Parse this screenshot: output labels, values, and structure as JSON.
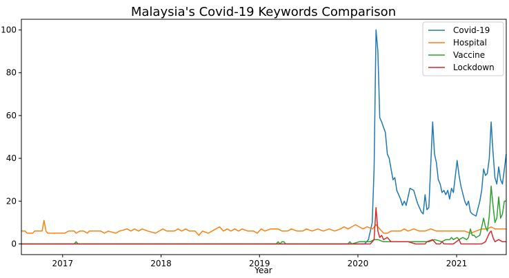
{
  "chart_data": {
    "type": "line",
    "title": "Malaysia's Covid-19 Keywords Comparison",
    "xlabel": "Year",
    "ylabel": "",
    "x_range": [
      "2016-08-01",
      "2021-07-04"
    ],
    "ylim": [
      -5,
      105
    ],
    "x_ticks": [
      "2017",
      "2018",
      "2019",
      "2020",
      "2021"
    ],
    "y_ticks": [
      0,
      20,
      40,
      60,
      80,
      100
    ],
    "legend_position": "top-right",
    "grid": false,
    "series": [
      {
        "name": "Covid-19",
        "color": "#1f77b4",
        "points": [
          [
            "2016-08-01",
            0
          ],
          [
            "2019-12-15",
            0
          ],
          [
            "2020-01-26",
            0
          ],
          [
            "2020-02-09",
            2
          ],
          [
            "2020-02-23",
            10
          ],
          [
            "2020-03-01",
            35
          ],
          [
            "2020-03-08",
            100
          ],
          [
            "2020-03-15",
            90
          ],
          [
            "2020-03-22",
            59
          ],
          [
            "2020-03-29",
            57
          ],
          [
            "2020-04-12",
            52
          ],
          [
            "2020-04-19",
            42
          ],
          [
            "2020-04-26",
            40
          ],
          [
            "2020-05-03",
            35
          ],
          [
            "2020-05-10",
            30
          ],
          [
            "2020-05-17",
            31
          ],
          [
            "2020-05-24",
            25
          ],
          [
            "2020-06-07",
            21
          ],
          [
            "2020-06-14",
            18
          ],
          [
            "2020-06-21",
            20
          ],
          [
            "2020-06-28",
            18
          ],
          [
            "2020-07-05",
            22
          ],
          [
            "2020-07-12",
            26
          ],
          [
            "2020-07-26",
            25
          ],
          [
            "2020-08-02",
            22
          ],
          [
            "2020-08-09",
            19
          ],
          [
            "2020-08-23",
            15
          ],
          [
            "2020-08-30",
            14
          ],
          [
            "2020-09-06",
            23
          ],
          [
            "2020-09-13",
            16
          ],
          [
            "2020-09-20",
            17
          ],
          [
            "2020-10-04",
            57
          ],
          [
            "2020-10-11",
            42
          ],
          [
            "2020-10-18",
            38
          ],
          [
            "2020-10-25",
            30
          ],
          [
            "2020-11-01",
            28
          ],
          [
            "2020-11-08",
            24
          ],
          [
            "2020-11-15",
            25
          ],
          [
            "2020-11-22",
            23
          ],
          [
            "2020-11-29",
            25
          ],
          [
            "2020-12-06",
            21
          ],
          [
            "2020-12-13",
            26
          ],
          [
            "2020-12-20",
            24
          ],
          [
            "2021-01-03",
            39
          ],
          [
            "2021-01-10",
            32
          ],
          [
            "2021-01-17",
            27
          ],
          [
            "2021-01-31",
            20
          ],
          [
            "2021-02-07",
            18
          ],
          [
            "2021-02-14",
            20
          ],
          [
            "2021-02-21",
            15
          ],
          [
            "2021-02-28",
            14
          ],
          [
            "2021-03-14",
            13
          ],
          [
            "2021-03-28",
            20
          ],
          [
            "2021-04-04",
            25
          ],
          [
            "2021-04-11",
            35
          ],
          [
            "2021-04-18",
            32
          ],
          [
            "2021-04-25",
            33
          ],
          [
            "2021-05-02",
            40
          ],
          [
            "2021-05-09",
            57
          ],
          [
            "2021-05-16",
            43
          ],
          [
            "2021-05-23",
            31
          ],
          [
            "2021-05-30",
            28
          ],
          [
            "2021-06-06",
            36
          ],
          [
            "2021-06-13",
            30
          ],
          [
            "2021-06-20",
            28
          ],
          [
            "2021-06-27",
            35
          ],
          [
            "2021-07-04",
            42
          ]
        ]
      },
      {
        "name": "Hospital",
        "color": "#ff7f0e",
        "points": [
          [
            "2016-08-01",
            6
          ],
          [
            "2016-08-15",
            6
          ],
          [
            "2016-08-22",
            5
          ],
          [
            "2016-09-12",
            5
          ],
          [
            "2016-09-19",
            6
          ],
          [
            "2016-10-17",
            6
          ],
          [
            "2016-10-24",
            11
          ],
          [
            "2016-10-31",
            6
          ],
          [
            "2016-11-07",
            5
          ],
          [
            "2017-01-09",
            5
          ],
          [
            "2017-01-23",
            6
          ],
          [
            "2017-02-13",
            6
          ],
          [
            "2017-02-20",
            5
          ],
          [
            "2017-03-06",
            6
          ],
          [
            "2017-03-20",
            6
          ],
          [
            "2017-04-03",
            5
          ],
          [
            "2017-04-10",
            6
          ],
          [
            "2017-05-22",
            6
          ],
          [
            "2017-06-05",
            5
          ],
          [
            "2017-06-19",
            6
          ],
          [
            "2017-07-17",
            5
          ],
          [
            "2017-07-31",
            6
          ],
          [
            "2017-08-28",
            7
          ],
          [
            "2017-09-11",
            6
          ],
          [
            "2017-09-25",
            7
          ],
          [
            "2017-10-09",
            6
          ],
          [
            "2017-10-23",
            7
          ],
          [
            "2017-11-13",
            6
          ],
          [
            "2017-12-11",
            5
          ],
          [
            "2017-12-25",
            6
          ],
          [
            "2018-01-08",
            7
          ],
          [
            "2018-01-22",
            6
          ],
          [
            "2018-02-19",
            6
          ],
          [
            "2018-03-05",
            7
          ],
          [
            "2018-03-19",
            6
          ],
          [
            "2018-04-02",
            7
          ],
          [
            "2018-04-16",
            6
          ],
          [
            "2018-05-07",
            6
          ],
          [
            "2018-05-21",
            4
          ],
          [
            "2018-06-04",
            6
          ],
          [
            "2018-06-25",
            5
          ],
          [
            "2018-07-09",
            6
          ],
          [
            "2018-07-23",
            7
          ],
          [
            "2018-08-06",
            8
          ],
          [
            "2018-08-20",
            6
          ],
          [
            "2018-09-03",
            7
          ],
          [
            "2018-09-17",
            6
          ],
          [
            "2018-10-01",
            7
          ],
          [
            "2018-10-15",
            6
          ],
          [
            "2018-10-29",
            7
          ],
          [
            "2018-11-19",
            6
          ],
          [
            "2018-12-10",
            6
          ],
          [
            "2018-12-24",
            5
          ],
          [
            "2019-01-07",
            7
          ],
          [
            "2019-01-21",
            6
          ],
          [
            "2019-02-11",
            7
          ],
          [
            "2019-03-11",
            7
          ],
          [
            "2019-03-25",
            6
          ],
          [
            "2019-04-15",
            6
          ],
          [
            "2019-04-29",
            7
          ],
          [
            "2019-05-20",
            6
          ],
          [
            "2019-06-10",
            6
          ],
          [
            "2019-06-24",
            7
          ],
          [
            "2019-07-15",
            6
          ],
          [
            "2019-08-05",
            7
          ],
          [
            "2019-08-26",
            6
          ],
          [
            "2019-09-16",
            7
          ],
          [
            "2019-10-07",
            6
          ],
          [
            "2019-10-28",
            7
          ],
          [
            "2019-11-11",
            8
          ],
          [
            "2019-11-25",
            7
          ],
          [
            "2019-12-09",
            8
          ],
          [
            "2019-12-23",
            9
          ],
          [
            "2020-01-06",
            8
          ],
          [
            "2020-01-20",
            7
          ],
          [
            "2020-02-03",
            8
          ],
          [
            "2020-02-24",
            7
          ],
          [
            "2020-03-08",
            9
          ],
          [
            "2020-03-22",
            7
          ],
          [
            "2020-04-05",
            5
          ],
          [
            "2020-04-19",
            5
          ],
          [
            "2020-05-03",
            6
          ],
          [
            "2020-05-24",
            6
          ],
          [
            "2020-06-07",
            6
          ],
          [
            "2020-06-21",
            7
          ],
          [
            "2020-07-05",
            6
          ],
          [
            "2020-07-26",
            7
          ],
          [
            "2020-08-16",
            6
          ],
          [
            "2020-09-06",
            6
          ],
          [
            "2020-09-27",
            7
          ],
          [
            "2020-10-18",
            6
          ],
          [
            "2020-11-15",
            6
          ],
          [
            "2020-12-13",
            6
          ],
          [
            "2021-01-10",
            6
          ],
          [
            "2021-01-31",
            6
          ],
          [
            "2021-02-21",
            5
          ],
          [
            "2021-03-14",
            6
          ],
          [
            "2021-04-04",
            7
          ],
          [
            "2021-04-25",
            7
          ],
          [
            "2021-05-09",
            8
          ],
          [
            "2021-05-23",
            7
          ],
          [
            "2021-06-06",
            7
          ],
          [
            "2021-06-20",
            7
          ],
          [
            "2021-07-04",
            7
          ]
        ]
      },
      {
        "name": "Vaccine",
        "color": "#2ca02c",
        "points": [
          [
            "2016-08-01",
            0
          ],
          [
            "2017-02-13",
            0
          ],
          [
            "2017-02-20",
            1
          ],
          [
            "2017-02-27",
            0
          ],
          [
            "2019-03-04",
            0
          ],
          [
            "2019-03-11",
            1
          ],
          [
            "2019-03-18",
            0
          ],
          [
            "2019-03-25",
            1
          ],
          [
            "2019-04-01",
            1
          ],
          [
            "2019-04-08",
            0
          ],
          [
            "2019-11-25",
            0
          ],
          [
            "2019-12-02",
            1
          ],
          [
            "2019-12-09",
            0
          ],
          [
            "2020-01-06",
            1
          ],
          [
            "2020-02-16",
            1
          ],
          [
            "2020-03-01",
            2
          ],
          [
            "2020-03-15",
            2
          ],
          [
            "2020-04-05",
            1
          ],
          [
            "2020-05-03",
            1
          ],
          [
            "2020-06-07",
            1
          ],
          [
            "2020-07-05",
            1
          ],
          [
            "2020-08-16",
            1
          ],
          [
            "2020-09-20",
            1
          ],
          [
            "2020-10-11",
            2
          ],
          [
            "2020-11-08",
            1
          ],
          [
            "2020-11-22",
            2
          ],
          [
            "2020-12-06",
            2
          ],
          [
            "2020-12-13",
            3
          ],
          [
            "2020-12-20",
            2
          ],
          [
            "2021-01-03",
            3
          ],
          [
            "2021-01-10",
            2
          ],
          [
            "2021-01-24",
            3
          ],
          [
            "2021-02-07",
            2
          ],
          [
            "2021-02-14",
            3
          ],
          [
            "2021-02-21",
            7
          ],
          [
            "2021-02-28",
            4
          ],
          [
            "2021-03-07",
            4
          ],
          [
            "2021-03-14",
            3
          ],
          [
            "2021-03-28",
            4
          ],
          [
            "2021-04-11",
            12
          ],
          [
            "2021-04-18",
            8
          ],
          [
            "2021-04-25",
            6
          ],
          [
            "2021-05-02",
            13
          ],
          [
            "2021-05-09",
            27
          ],
          [
            "2021-05-16",
            18
          ],
          [
            "2021-05-23",
            10
          ],
          [
            "2021-05-30",
            12
          ],
          [
            "2021-06-06",
            22
          ],
          [
            "2021-06-13",
            12
          ],
          [
            "2021-06-20",
            14
          ],
          [
            "2021-06-27",
            20
          ],
          [
            "2021-07-04",
            20
          ]
        ]
      },
      {
        "name": "Lockdown",
        "color": "#d62728",
        "points": [
          [
            "2016-08-01",
            0
          ],
          [
            "2020-02-16",
            0
          ],
          [
            "2020-03-01",
            2
          ],
          [
            "2020-03-08",
            17
          ],
          [
            "2020-03-15",
            6
          ],
          [
            "2020-03-22",
            3
          ],
          [
            "2020-03-29",
            4
          ],
          [
            "2020-04-05",
            2
          ],
          [
            "2020-04-19",
            3
          ],
          [
            "2020-05-03",
            1
          ],
          [
            "2020-06-07",
            1
          ],
          [
            "2020-07-05",
            1
          ],
          [
            "2020-08-02",
            0
          ],
          [
            "2020-09-06",
            0
          ],
          [
            "2020-09-13",
            1
          ],
          [
            "2020-10-04",
            2
          ],
          [
            "2020-10-18",
            0
          ],
          [
            "2020-11-01",
            0
          ],
          [
            "2020-11-08",
            1
          ],
          [
            "2020-11-15",
            0
          ],
          [
            "2020-12-20",
            0
          ],
          [
            "2021-01-10",
            2
          ],
          [
            "2021-01-17",
            0
          ],
          [
            "2021-04-04",
            0
          ],
          [
            "2021-04-18",
            1
          ],
          [
            "2021-05-02",
            5
          ],
          [
            "2021-05-09",
            6
          ],
          [
            "2021-05-16",
            3
          ],
          [
            "2021-05-23",
            1
          ],
          [
            "2021-06-06",
            2
          ],
          [
            "2021-06-20",
            1
          ],
          [
            "2021-07-04",
            1
          ]
        ]
      }
    ]
  }
}
